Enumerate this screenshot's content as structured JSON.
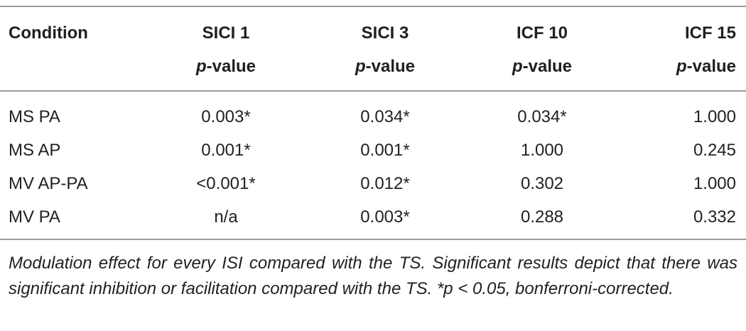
{
  "table": {
    "headers": [
      {
        "line1": "Condition",
        "line2_italic": "",
        "line2_rest": ""
      },
      {
        "line1": "SICI 1",
        "line2_italic": "p",
        "line2_rest": "-value"
      },
      {
        "line1": "SICI 3",
        "line2_italic": "p",
        "line2_rest": "-value"
      },
      {
        "line1": "ICF 10",
        "line2_italic": "p",
        "line2_rest": "-value"
      },
      {
        "line1": "ICF 15",
        "line2_italic": "p",
        "line2_rest": "-value"
      }
    ],
    "rows": [
      [
        "MS PA",
        "0.003*",
        "0.034*",
        "0.034*",
        "1.000"
      ],
      [
        "MS AP",
        "0.001*",
        "0.001*",
        "1.000",
        "0.245"
      ],
      [
        "MV AP-PA",
        "<0.001*",
        "0.012*",
        "0.302",
        "1.000"
      ],
      [
        "MV PA",
        "n/a",
        "0.003*",
        "0.288",
        "0.332"
      ]
    ]
  },
  "caption": "Modulation effect for every ISI compared with the TS. Significant results depict that there was significant inhibition or facilitation compared with the TS. *p < 0.05, bonferroni-corrected."
}
